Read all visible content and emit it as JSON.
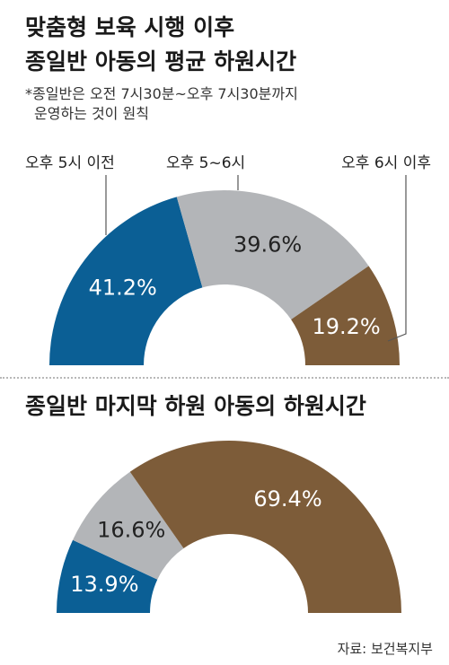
{
  "header": {
    "title_line1": "맞춤형 보육 시행 이후",
    "title_line2": "종일반 아동의 평균 하원시간",
    "note_line1": "*종일반은 오전 7시30분~오후 7시30분까지",
    "note_line2": "운영하는 것이 원칙"
  },
  "section2": {
    "title": "종일반 마지막 하원 아동의 하원시간"
  },
  "source": "자료: 보건복지부",
  "colors": {
    "blue": "#0b5f95",
    "gray": "#b3b5b8",
    "brown": "#7d5c39"
  },
  "chart_data": [
    {
      "type": "pie",
      "subtype": "semicircle-donut",
      "categories": [
        "오후 5시 이전",
        "오후 5~6시",
        "오후 6시 이후"
      ],
      "values": [
        41.2,
        39.6,
        19.2
      ],
      "labels": [
        "41.2%",
        "39.6%",
        "19.2%"
      ],
      "colors": [
        "#0b5f95",
        "#b3b5b8",
        "#7d5c39"
      ],
      "title": "종일반 아동의 평균 하원시간"
    },
    {
      "type": "pie",
      "subtype": "semicircle-donut",
      "values": [
        13.9,
        16.6,
        69.4
      ],
      "labels": [
        "13.9%",
        "16.6%",
        "69.4%"
      ],
      "colors": [
        "#0b5f95",
        "#b3b5b8",
        "#7d5c39"
      ],
      "title": "종일반 마지막 하원 아동의 하원시간"
    }
  ]
}
